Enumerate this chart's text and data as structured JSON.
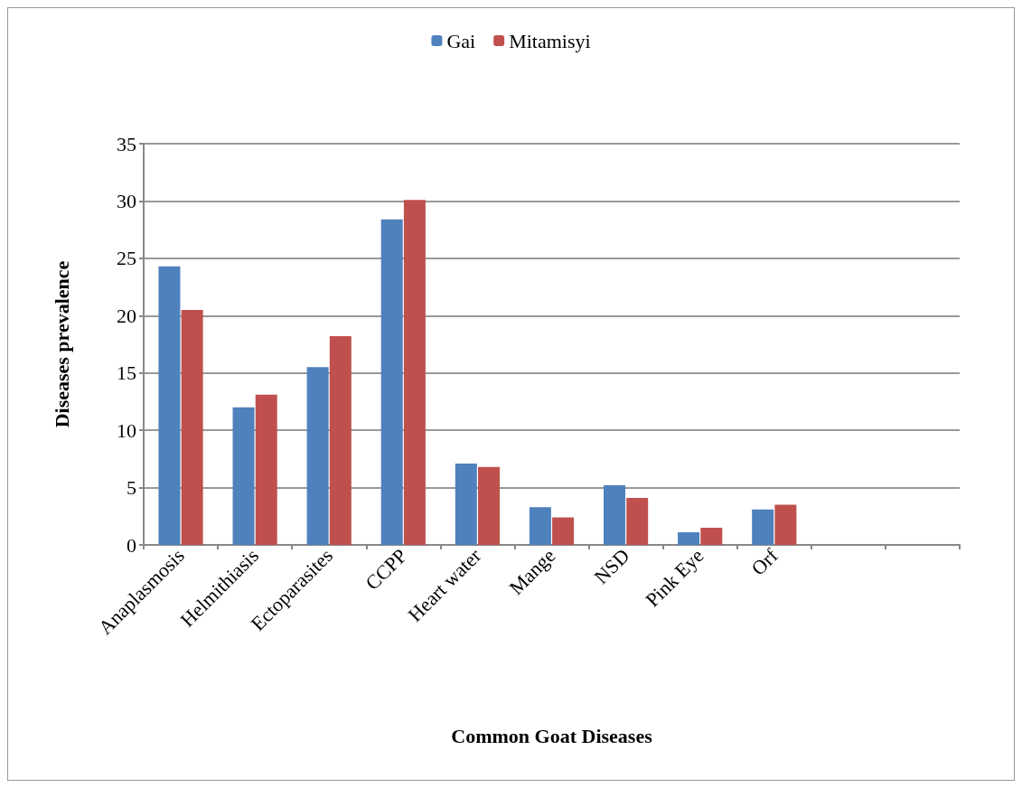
{
  "chart_data": {
    "type": "bar",
    "xlabel": "Common Goat Diseases",
    "ylabel": "Diseases prevalence",
    "categories": [
      "Anaplasmosis",
      "Helmithiasis",
      "Ectoparasites",
      "CCPP",
      "Heart water",
      "Mange",
      "NSD",
      "Pink Eye",
      "Orf",
      null,
      null
    ],
    "series": [
      {
        "name": "Gai",
        "color": "#4f81bd",
        "values": [
          24.3,
          12,
          15.5,
          28.4,
          7.1,
          3.3,
          5.2,
          1.1,
          3.1,
          null,
          null
        ]
      },
      {
        "name": "Mitamisyi",
        "color": "#c0504d",
        "values": [
          20.5,
          13.1,
          18.2,
          30.1,
          6.8,
          2.4,
          4.1,
          1.5,
          3.5,
          null,
          null
        ]
      }
    ],
    "ylim": [
      0,
      35
    ],
    "yticks": [
      0,
      5,
      10,
      15,
      20,
      25,
      30,
      35
    ],
    "grid": "y",
    "legend": "top"
  }
}
